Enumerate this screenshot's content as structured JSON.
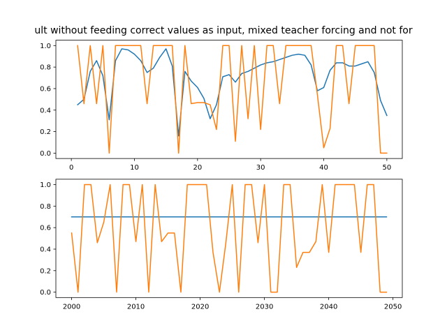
{
  "figure_title": "ult without feeding correct values as input, mixed teacher forcing and not for",
  "colors": {
    "series_blue": "#1f77b4",
    "series_orange": "#ff7f0e",
    "axes": "#000000",
    "background": "#ffffff"
  },
  "chart_data": [
    {
      "type": "line",
      "title": "",
      "xlabel": "",
      "ylabel": "",
      "xlim": [
        -2.45,
        52.45
      ],
      "ylim": [
        -0.05,
        1.05
      ],
      "x_ticks": [
        0,
        10,
        20,
        30,
        40,
        50
      ],
      "y_ticks": [
        0.0,
        0.2,
        0.4,
        0.6,
        0.8,
        1.0
      ],
      "grid": false,
      "x": [
        1,
        2,
        3,
        4,
        5,
        6,
        7,
        8,
        9,
        10,
        11,
        12,
        13,
        14,
        15,
        16,
        17,
        18,
        19,
        20,
        21,
        22,
        23,
        24,
        25,
        26,
        27,
        28,
        29,
        30,
        31,
        32,
        33,
        34,
        35,
        36,
        37,
        38,
        39,
        40,
        41,
        42,
        43,
        44,
        45,
        46,
        47,
        48,
        49,
        50
      ],
      "series": [
        {
          "color": "#1f77b4",
          "values": [
            0.45,
            0.5,
            0.76,
            0.86,
            0.72,
            0.31,
            0.86,
            0.97,
            0.96,
            0.92,
            0.86,
            0.75,
            0.79,
            0.89,
            0.97,
            0.81,
            0.16,
            0.76,
            0.67,
            0.61,
            0.51,
            0.32,
            0.45,
            0.71,
            0.73,
            0.66,
            0.74,
            0.76,
            0.79,
            0.82,
            0.84,
            0.85,
            0.87,
            0.89,
            0.91,
            0.92,
            0.91,
            0.82,
            0.58,
            0.61,
            0.77,
            0.84,
            0.84,
            0.81,
            0.81,
            0.83,
            0.85,
            0.75,
            0.49,
            0.35
          ]
        },
        {
          "color": "#ff7f0e",
          "values": [
            1.0,
            0.46,
            1.0,
            0.46,
            1.0,
            0.0,
            1.0,
            1.0,
            1.0,
            1.0,
            1.0,
            0.46,
            1.0,
            1.0,
            1.0,
            1.0,
            0.0,
            1.0,
            0.46,
            0.47,
            0.47,
            0.45,
            0.22,
            1.0,
            1.0,
            0.11,
            1.0,
            0.32,
            1.0,
            0.22,
            1.0,
            1.0,
            0.46,
            1.0,
            1.0,
            1.0,
            1.0,
            1.0,
            0.54,
            0.05,
            0.23,
            1.0,
            1.0,
            0.46,
            1.0,
            1.0,
            1.0,
            1.0,
            0.0,
            0.0
          ]
        }
      ]
    },
    {
      "type": "line",
      "title": "",
      "xlabel": "",
      "ylabel": "",
      "xlim": [
        1997.55,
        2051.45
      ],
      "ylim": [
        -0.05,
        1.05
      ],
      "x_ticks": [
        2000,
        2010,
        2020,
        2030,
        2040,
        2050
      ],
      "y_ticks": [
        0.0,
        0.2,
        0.4,
        0.6,
        0.8,
        1.0
      ],
      "grid": false,
      "x": [
        2000,
        2001,
        2002,
        2003,
        2004,
        2005,
        2006,
        2007,
        2008,
        2009,
        2010,
        2011,
        2012,
        2013,
        2014,
        2015,
        2016,
        2017,
        2018,
        2019,
        2020,
        2021,
        2022,
        2023,
        2024,
        2025,
        2026,
        2027,
        2028,
        2029,
        2030,
        2031,
        2032,
        2033,
        2034,
        2035,
        2036,
        2037,
        2038,
        2039,
        2040,
        2041,
        2042,
        2043,
        2044,
        2045,
        2046,
        2047,
        2048,
        2049
      ],
      "series": [
        {
          "color": "#1f77b4",
          "values": [
            0.7,
            0.7,
            0.7,
            0.7,
            0.7,
            0.7,
            0.7,
            0.7,
            0.7,
            0.7,
            0.7,
            0.7,
            0.7,
            0.7,
            0.7,
            0.7,
            0.7,
            0.7,
            0.7,
            0.7,
            0.7,
            0.7,
            0.7,
            0.7,
            0.7,
            0.7,
            0.7,
            0.7,
            0.7,
            0.7,
            0.7,
            0.7,
            0.7,
            0.7,
            0.7,
            0.7,
            0.7,
            0.7,
            0.7,
            0.7,
            0.7,
            0.7,
            0.7,
            0.7,
            0.7,
            0.7,
            0.7,
            0.7,
            0.7,
            0.7
          ]
        },
        {
          "color": "#ff7f0e",
          "values": [
            0.55,
            0.0,
            1.0,
            1.0,
            0.46,
            0.65,
            1.0,
            0.0,
            1.0,
            1.0,
            0.47,
            1.0,
            0.0,
            1.0,
            0.47,
            0.55,
            0.55,
            0.0,
            1.0,
            1.0,
            1.0,
            1.0,
            0.37,
            0.0,
            0.46,
            1.0,
            0.0,
            1.0,
            1.0,
            0.46,
            1.0,
            0.0,
            0.0,
            1.0,
            1.0,
            0.23,
            0.37,
            0.37,
            0.47,
            1.0,
            0.37,
            1.0,
            1.0,
            1.0,
            1.0,
            0.37,
            1.0,
            1.0,
            0.0,
            0.0
          ]
        }
      ]
    }
  ]
}
